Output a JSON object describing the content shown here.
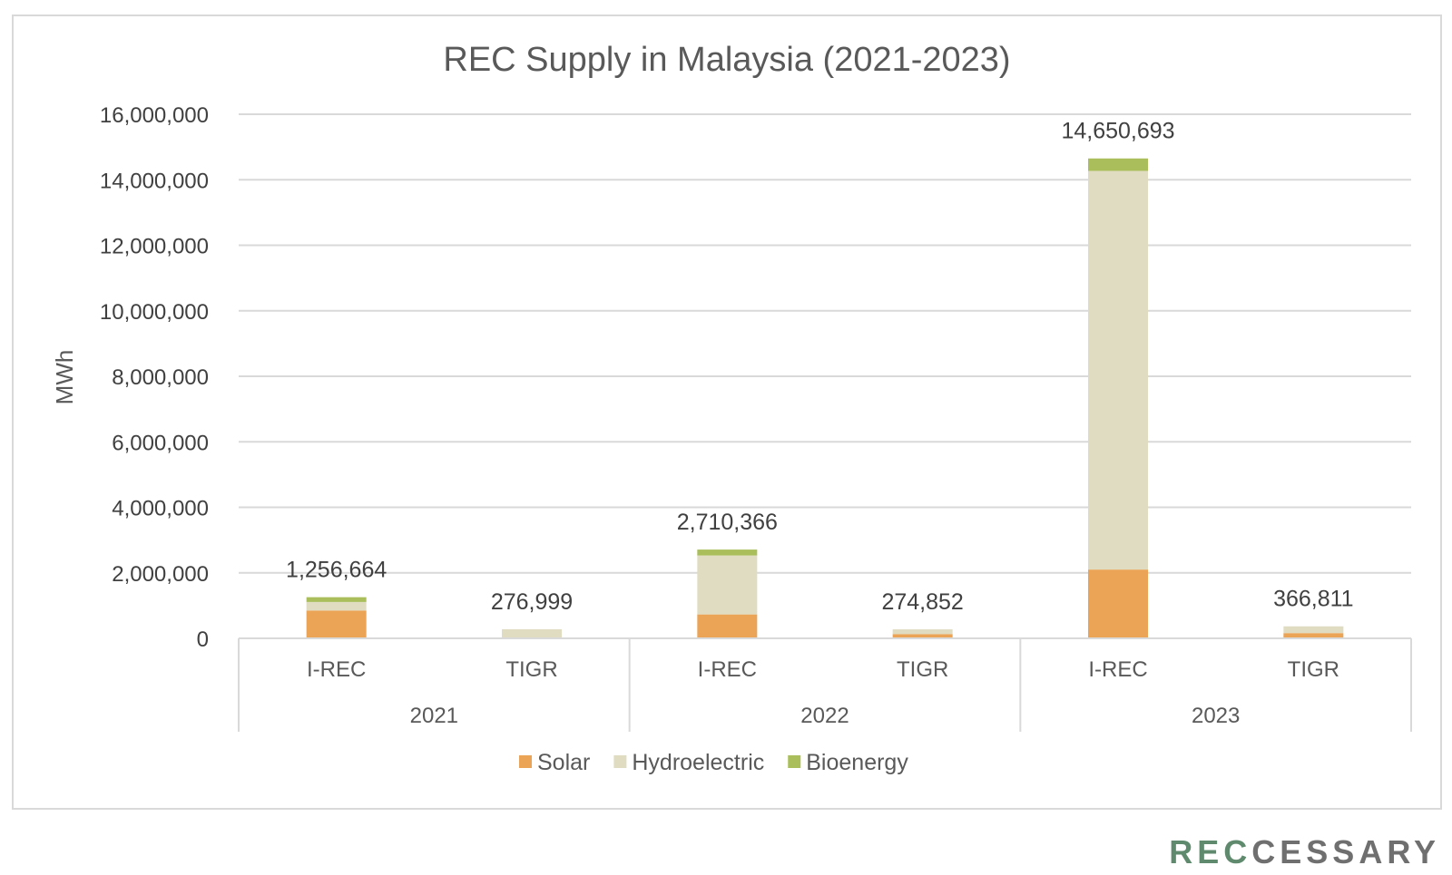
{
  "chart_data": {
    "type": "bar",
    "stacked": true,
    "title": "REC Supply in Malaysia (2021-2023)",
    "ylabel": "MWh",
    "ylim": [
      0,
      16000000
    ],
    "yticks": [
      0,
      2000000,
      4000000,
      6000000,
      8000000,
      10000000,
      12000000,
      14000000,
      16000000
    ],
    "ytick_labels": [
      "0",
      "2,000,000",
      "4,000,000",
      "6,000,000",
      "8,000,000",
      "10,000,000",
      "12,000,000",
      "14,000,000",
      "16,000,000"
    ],
    "grid": true,
    "legend_position": "bottom",
    "groups": [
      {
        "label": "2021",
        "categories": [
          "I-REC",
          "TIGR"
        ]
      },
      {
        "label": "2022",
        "categories": [
          "I-REC",
          "TIGR"
        ]
      },
      {
        "label": "2023",
        "categories": [
          "I-REC",
          "TIGR"
        ]
      }
    ],
    "categories": [
      "I-REC",
      "TIGR",
      "I-REC",
      "TIGR",
      "I-REC",
      "TIGR"
    ],
    "series": [
      {
        "name": "Solar",
        "color": "#eba455",
        "values": [
          850000,
          0,
          730000,
          130000,
          2100000,
          160000
        ]
      },
      {
        "name": "Hydroelectric",
        "color": "#e0dcc2",
        "values": [
          260000,
          276999,
          1800000,
          144852,
          12170693,
          206811
        ]
      },
      {
        "name": "Bioenergy",
        "color": "#aabf5c",
        "values": [
          146664,
          0,
          180366,
          0,
          380000,
          0
        ]
      }
    ],
    "totals": [
      1256664,
      276999,
      2710366,
      274852,
      14650693,
      366811
    ],
    "total_labels": [
      "1,256,664",
      "276,999",
      "2,710,366",
      "274,852",
      "14,650,693",
      "366,811"
    ]
  },
  "logo": {
    "text_dark": "REC",
    "text_light": "CESSARY",
    "color_dark": "#5f8a6e",
    "color_light": "#6f6f6f"
  }
}
